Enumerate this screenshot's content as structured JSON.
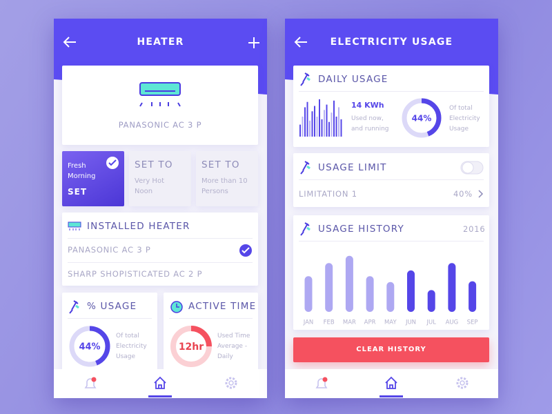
{
  "screens": [
    {
      "header": {
        "title": "HEATER"
      },
      "device": {
        "name": "PANASONIC AC 3 P"
      },
      "modes": [
        {
          "title": "Fresh Morning",
          "action": "SET"
        },
        {
          "title": "SET TO",
          "subtitle": "Very Hot Noon"
        },
        {
          "title": "SET TO",
          "subtitle": "More than 10 Persons"
        }
      ],
      "installed": {
        "title": "INSTALLED HEATER",
        "items": [
          "PANASONIC AC 3 P",
          "SHARP SHOPISTICATED AC 2 P"
        ]
      },
      "usage": {
        "title": "% USAGE",
        "value": 44,
        "value_label": "44%",
        "caption": "Of total Electricity Usage"
      },
      "active_time": {
        "title": "ACTIVE TIME",
        "value_label": "12hr",
        "caption": "Used Time Average - Daily"
      }
    },
    {
      "header": {
        "title": "ELECTRICITY USAGE"
      },
      "daily": {
        "title": "DAILY USAGE",
        "amount": "14 KWh",
        "status": "Used now, and running",
        "bars": [
          18,
          30,
          44,
          52,
          24,
          38,
          46,
          30,
          56,
          26,
          40,
          48,
          22,
          36,
          54,
          30,
          44,
          26
        ],
        "value": 44,
        "value_label": "44%",
        "caption": "Of total Electricity Usage"
      },
      "limit": {
        "title": "USAGE LIMIT",
        "item": "LIMITATION 1",
        "value": "40%"
      },
      "history": {
        "title": "USAGE HISTORY",
        "year": "2016",
        "chart_data": {
          "type": "bar",
          "categories": [
            "JAN",
            "FEB",
            "MAR",
            "APR",
            "MAY",
            "JUN",
            "JUL",
            "AUG",
            "SEP"
          ],
          "values": [
            49,
            67,
            77,
            49,
            41,
            57,
            30,
            67,
            42
          ],
          "colors": [
            "#aea8f2",
            "#aea8f2",
            "#aea8f2",
            "#aea8f2",
            "#aea8f2",
            "#5546e8",
            "#5546e8",
            "#5546e8",
            "#5546e8"
          ],
          "ylim": [
            0,
            90
          ]
        }
      },
      "button": "CLEAR HISTORY"
    }
  ]
}
